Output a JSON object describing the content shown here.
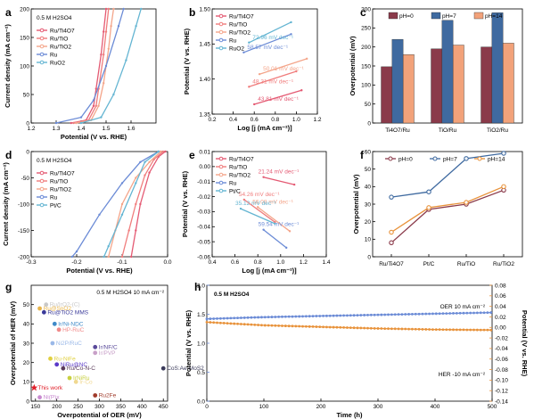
{
  "chart_data": [
    {
      "panel": "a",
      "type": "line",
      "note": "0.5 M H2SO4",
      "xlabel": "Potential (V vs. RHE)",
      "ylabel": "Current density (mA cm⁻²)",
      "xlim": [
        1.2,
        1.7
      ],
      "ylim": [
        0,
        200
      ],
      "xticks": [
        1.2,
        1.3,
        1.4,
        1.5,
        1.6
      ],
      "yticks": [
        0,
        50,
        100,
        150,
        200
      ],
      "series": [
        {
          "name": "Ru/Ti4O7",
          "color": "#e45a73",
          "points": [
            [
              1.36,
              0
            ],
            [
              1.42,
              5
            ],
            [
              1.45,
              30
            ],
            [
              1.46,
              60
            ],
            [
              1.48,
              120
            ],
            [
              1.49,
              160
            ],
            [
              1.5,
              200
            ]
          ]
        },
        {
          "name": "Ru/TiO",
          "color": "#f07c7c",
          "points": [
            [
              1.37,
              0
            ],
            [
              1.43,
              5
            ],
            [
              1.46,
              30
            ],
            [
              1.47,
              60
            ],
            [
              1.49,
              120
            ],
            [
              1.5,
              160
            ],
            [
              1.51,
              200
            ]
          ]
        },
        {
          "name": "Ru/TiO2",
          "color": "#f4a58a",
          "points": [
            [
              1.38,
              0
            ],
            [
              1.44,
              5
            ],
            [
              1.47,
              30
            ],
            [
              1.49,
              70
            ],
            [
              1.51,
              130
            ],
            [
              1.52,
              170
            ],
            [
              1.53,
              200
            ]
          ]
        },
        {
          "name": "Ru",
          "color": "#6b8bd6",
          "points": [
            [
              1.3,
              0
            ],
            [
              1.4,
              10
            ],
            [
              1.45,
              40
            ],
            [
              1.5,
              100
            ],
            [
              1.55,
              170
            ],
            [
              1.57,
              200
            ]
          ]
        },
        {
          "name": "RuO2",
          "color": "#64b5d2",
          "points": [
            [
              1.4,
              0
            ],
            [
              1.48,
              10
            ],
            [
              1.53,
              50
            ],
            [
              1.58,
              110
            ],
            [
              1.62,
              170
            ],
            [
              1.64,
              200
            ]
          ]
        }
      ]
    },
    {
      "panel": "b",
      "type": "line",
      "xlabel": "Log [j (mA cm⁻²)]",
      "ylabel": "Potential (V vs. RHE)",
      "xlim": [
        0.2,
        1.2
      ],
      "ylim": [
        1.35,
        1.5
      ],
      "xticks": [
        0.2,
        0.4,
        0.6,
        0.8,
        1.0,
        1.2
      ],
      "yticks": [
        1.35,
        1.4,
        1.45,
        1.5
      ],
      "series": [
        {
          "name": "Ru/Ti4O7",
          "color": "#e45a73",
          "tafel": "43.81 mV dec⁻¹",
          "points": [
            [
              0.6,
              1.364
            ],
            [
              1.05,
              1.384
            ]
          ]
        },
        {
          "name": "Ru/TiO",
          "color": "#f07c7c",
          "tafel": "48.31 mV dec⁻¹",
          "points": [
            [
              0.55,
              1.389
            ],
            [
              1.0,
              1.411
            ]
          ]
        },
        {
          "name": "Ru/TiO2",
          "color": "#f4a58a",
          "tafel": "50.01 mV dec⁻¹",
          "points": [
            [
              0.65,
              1.407
            ],
            [
              1.1,
              1.429
            ]
          ]
        },
        {
          "name": "Ru",
          "color": "#6b8bd6",
          "tafel": "58.57 mV dec⁻¹",
          "points": [
            [
              0.5,
              1.438
            ],
            [
              0.95,
              1.464
            ]
          ]
        },
        {
          "name": "RuO2",
          "color": "#64b5d2",
          "tafel": "72.96 mV dec⁻¹",
          "points": [
            [
              0.55,
              1.452
            ],
            [
              0.95,
              1.481
            ]
          ]
        }
      ]
    },
    {
      "panel": "c",
      "type": "bar",
      "ylabel": "Overpotential (mV)",
      "ylim": [
        0,
        300
      ],
      "yticks": [
        0,
        50,
        100,
        150,
        200,
        250,
        300
      ],
      "categories": [
        "Ti4O7/Ru",
        "TiO/Ru",
        "TiO2/Ru"
      ],
      "series": [
        {
          "name": "pH=0",
          "color": "#8a3a4a",
          "values": [
            148,
            195,
            200
          ]
        },
        {
          "name": "pH=7",
          "color": "#3f6aa0",
          "values": [
            220,
            270,
            290
          ]
        },
        {
          "name": "pH=14",
          "color": "#f2a27a",
          "values": [
            180,
            205,
            210
          ]
        }
      ]
    },
    {
      "panel": "d",
      "type": "line",
      "note": "0.5 M H2SO4",
      "xlabel": "Potential (V vs. RHE)",
      "ylabel": "Current density (mA cm⁻²)",
      "xlim": [
        -0.3,
        0
      ],
      "ylim": [
        -200,
        0
      ],
      "xticks": [
        -0.3,
        -0.2,
        -0.1,
        0
      ],
      "yticks": [
        -200,
        -150,
        -100,
        -50,
        0
      ],
      "series": [
        {
          "name": "Ru/Ti4O7",
          "color": "#e45a73",
          "points": [
            [
              -0.005,
              0
            ],
            [
              -0.02,
              -10
            ],
            [
              -0.04,
              -40
            ],
            [
              -0.06,
              -100
            ],
            [
              -0.07,
              -150
            ],
            [
              -0.08,
              -200
            ]
          ]
        },
        {
          "name": "Ru/TiO",
          "color": "#f07c7c",
          "points": [
            [
              -0.01,
              0
            ],
            [
              -0.03,
              -15
            ],
            [
              -0.05,
              -45
            ],
            [
              -0.07,
              -100
            ],
            [
              -0.085,
              -150
            ],
            [
              -0.1,
              -200
            ]
          ]
        },
        {
          "name": "Ru/TiO2",
          "color": "#f4a58a",
          "points": [
            [
              -0.015,
              0
            ],
            [
              -0.04,
              -20
            ],
            [
              -0.07,
              -50
            ],
            [
              -0.1,
              -100
            ],
            [
              -0.115,
              -150
            ],
            [
              -0.13,
              -200
            ]
          ]
        },
        {
          "name": "Ru",
          "color": "#6b8bd6",
          "points": [
            [
              -0.02,
              0
            ],
            [
              -0.06,
              -20
            ],
            [
              -0.1,
              -60
            ],
            [
              -0.15,
              -120
            ],
            [
              -0.2,
              -190
            ],
            [
              -0.21,
              -200
            ]
          ]
        },
        {
          "name": "Pt/C",
          "color": "#64b5d2",
          "points": [
            [
              -0.02,
              0
            ],
            [
              -0.05,
              -20
            ],
            [
              -0.07,
              -60
            ],
            [
              -0.1,
              -120
            ],
            [
              -0.13,
              -180
            ],
            [
              -0.14,
              -200
            ]
          ]
        }
      ]
    },
    {
      "panel": "e",
      "type": "line",
      "xlabel": "Log [j (mA cm⁻²)]",
      "ylabel": "Potential (V vs. RHE)",
      "xlim": [
        0.4,
        1.4
      ],
      "ylim": [
        -0.06,
        0.01
      ],
      "xticks": [
        0.4,
        0.6,
        0.8,
        1.0,
        1.2,
        1.4
      ],
      "yticks": [
        -0.06,
        -0.05,
        -0.04,
        -0.03,
        -0.02,
        -0.01,
        0,
        0.01
      ],
      "series": [
        {
          "name": "Ru/Ti4O7",
          "color": "#e45a73",
          "tafel": "21.24 mV dec⁻¹",
          "points": [
            [
              0.85,
              -0.007
            ],
            [
              1.12,
              -0.012
            ]
          ]
        },
        {
          "name": "Ru/TiO",
          "color": "#f07c7c",
          "tafel": "54.26 mV dec⁻¹",
          "points": [
            [
              0.68,
              -0.022
            ],
            [
              0.95,
              -0.037
            ]
          ]
        },
        {
          "name": "Ru/TiO2",
          "color": "#f4a58a",
          "tafel": "56.08 mV dec⁻¹",
          "points": [
            [
              0.8,
              -0.027
            ],
            [
              1.08,
              -0.043
            ]
          ]
        },
        {
          "name": "Ru",
          "color": "#6b8bd6",
          "tafel": "59.54 mV dec⁻¹",
          "points": [
            [
              0.85,
              -0.042
            ],
            [
              1.05,
              -0.054
            ]
          ]
        },
        {
          "name": "Pt/C",
          "color": "#64b5d2",
          "tafel": "35.12 mV dec⁻¹",
          "points": [
            [
              0.65,
              -0.028
            ],
            [
              0.95,
              -0.038
            ]
          ]
        }
      ]
    },
    {
      "panel": "f",
      "type": "line",
      "ylabel": "Overpotential (mV)",
      "ylim": [
        0,
        60
      ],
      "yticks": [
        0,
        10,
        20,
        30,
        40,
        50,
        60
      ],
      "categories": [
        "Ru/Ti4O7",
        "Pt/C",
        "Ru/TiO",
        "Ru/TiO2"
      ],
      "series": [
        {
          "name": "pH=0",
          "color": "#8a3a4a",
          "values": [
            8,
            27,
            30,
            38
          ]
        },
        {
          "name": "pH=7",
          "color": "#3f6aa0",
          "values": [
            34,
            37,
            56,
            59
          ]
        },
        {
          "name": "pH=14",
          "color": "#e8923a",
          "values": [
            14,
            28,
            31,
            40
          ]
        }
      ]
    },
    {
      "panel": "g",
      "type": "scatter",
      "note": "0.5 M H2SO4   10 mA cm⁻²",
      "xlabel": "Overpotential of OER (mV)",
      "ylabel": "Overpotential of HER (mV)",
      "xlim": [
        140,
        460
      ],
      "ylim": [
        0,
        60
      ],
      "xticks": [
        150,
        200,
        250,
        300,
        350,
        400,
        450
      ],
      "yticks": [
        0,
        10,
        20,
        30,
        40,
        50
      ],
      "points": [
        {
          "label": "This work",
          "x": 147,
          "y": 7,
          "color": "#e0202a"
        },
        {
          "label": "Ru@SnO2",
          "x": 160,
          "y": 48,
          "color": "#e8b44a"
        },
        {
          "label": "Ru@TiO2 MMS",
          "x": 170,
          "y": 46,
          "color": "#3a3a9a"
        },
        {
          "label": "Ru/IrO2-(C)",
          "x": 175,
          "y": 50,
          "color": "#c8c8c8"
        },
        {
          "label": "Ir/Ni-NDC",
          "x": 195,
          "y": 40,
          "color": "#3f8ac8"
        },
        {
          "label": "HP-RuC",
          "x": 205,
          "y": 37,
          "color": "#f08a8a"
        },
        {
          "label": "Ni2P/RuC",
          "x": 190,
          "y": 30,
          "color": "#9ab8e8"
        },
        {
          "label": "Ru-NiFe",
          "x": 185,
          "y": 22,
          "color": "#e0d040"
        },
        {
          "label": "NiRu@NC",
          "x": 200,
          "y": 19,
          "color": "#5a3ac8"
        },
        {
          "label": "Ru/Co-N-C",
          "x": 215,
          "y": 17,
          "color": "#5a3a5a"
        },
        {
          "label": "Ir/NF/C",
          "x": 290,
          "y": 28,
          "color": "#5a4a9a"
        },
        {
          "label": "Ir/PVP",
          "x": 290,
          "y": 25,
          "color": "#c8a0c8"
        },
        {
          "label": "CoS:Ae-MoS2",
          "x": 450,
          "y": 17,
          "color": "#3a3a5a"
        },
        {
          "label": "Ir-Co",
          "x": 245,
          "y": 10,
          "color": "#f0d890"
        },
        {
          "label": "IrNiRu",
          "x": 230,
          "y": 12,
          "color": "#c8d040"
        },
        {
          "label": "Ni(P)x",
          "x": 160,
          "y": 2,
          "color": "#c88ad0"
        },
        {
          "label": "Ru2Fe",
          "x": 290,
          "y": 3,
          "color": "#a03a2a"
        }
      ]
    },
    {
      "panel": "h",
      "type": "line",
      "note": "0.5 M H2SO4",
      "xlabel": "Time (h)",
      "ylabel": "Potential (V vs. RHE)",
      "ylabel2": "Potential (V vs. RHE)",
      "xlim": [
        0,
        500
      ],
      "ylim": [
        0,
        2.0
      ],
      "ylim2": [
        -0.14,
        0.08
      ],
      "xticks": [
        0,
        100,
        200,
        300,
        400,
        500
      ],
      "yticks": [
        0,
        0.5,
        1.0,
        1.5,
        2.0
      ],
      "yticks2": [
        -0.14,
        -0.12,
        -0.1,
        -0.08,
        -0.06,
        -0.04,
        -0.02,
        0,
        0.02,
        0.04,
        0.06,
        0.08
      ],
      "series": [
        {
          "name": "OER 10 mA cm⁻²",
          "color": "#6b8bd6",
          "axis": "left",
          "points": [
            [
              0,
              1.42
            ],
            [
              100,
              1.45
            ],
            [
              200,
              1.47
            ],
            [
              300,
              1.49
            ],
            [
              400,
              1.51
            ],
            [
              500,
              1.53
            ]
          ]
        },
        {
          "name": "HER -10 mA cm⁻²",
          "color": "#e8923a",
          "axis": "right",
          "points": [
            [
              0,
              0.01
            ],
            [
              100,
              0.004
            ],
            [
              200,
              0.001
            ],
            [
              300,
              -0.002
            ],
            [
              400,
              -0.004
            ],
            [
              500,
              -0.005
            ]
          ]
        }
      ]
    }
  ]
}
